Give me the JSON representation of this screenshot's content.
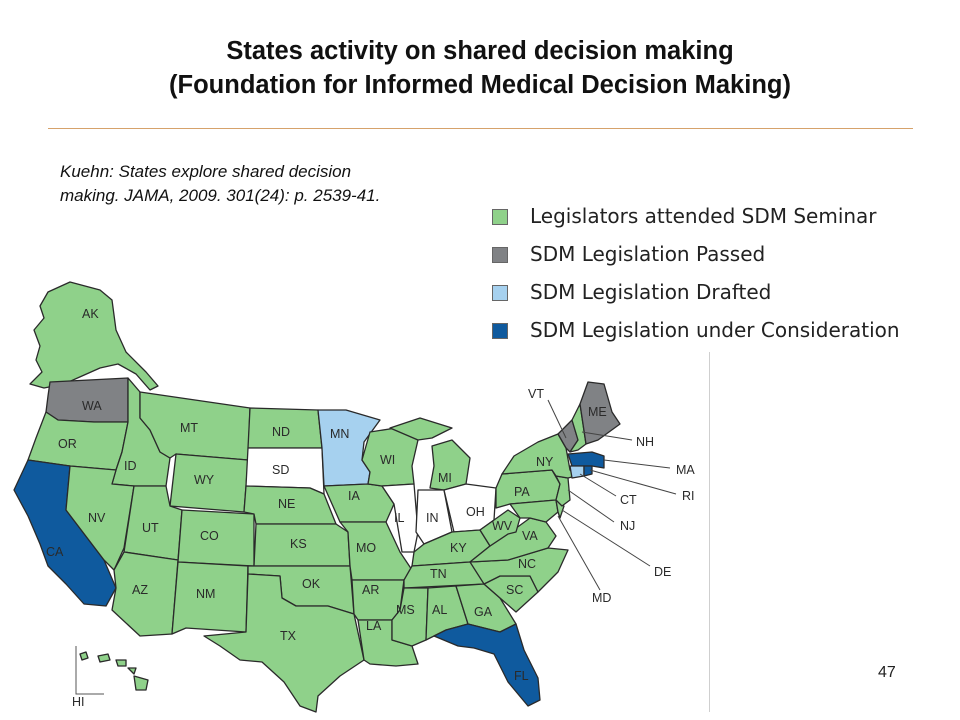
{
  "title_line1": "States activity on shared decision making",
  "title_line2": "(Foundation for Informed Medical Decision Making)",
  "citation": "Kuehn: States explore shared decision making. JAMA, 2009. 301(24): p. 2539-41.",
  "legend": [
    {
      "label": "Legislators attended SDM Seminar",
      "color": "#8fd18a"
    },
    {
      "label": "SDM Legislation Passed",
      "color": "#808285"
    },
    {
      "label": "SDM Legislation Drafted",
      "color": "#a6d1ef"
    },
    {
      "label": "SDM Legislation under Consideration",
      "color": "#0f5a9e"
    }
  ],
  "colors": {
    "seminar": "#8fd18a",
    "passed": "#808285",
    "drafted": "#a6d1ef",
    "consideration": "#0f5a9e",
    "none": "#ffffff",
    "border": "#2a2a2a"
  },
  "states": {
    "AK": "AK",
    "HI": "HI",
    "WA": "WA",
    "OR": "OR",
    "CA": "CA",
    "ID": "ID",
    "NV": "NV",
    "MT": "MT",
    "WY": "WY",
    "UT": "UT",
    "AZ": "AZ",
    "CO": "CO",
    "NM": "NM",
    "ND": "ND",
    "SD": "SD",
    "NE": "NE",
    "KS": "KS",
    "OK": "OK",
    "TX": "TX",
    "MN": "MN",
    "IA": "IA",
    "MO": "MO",
    "AR": "AR",
    "LA": "LA",
    "WI": "WI",
    "IL": "IL",
    "MS": "MS",
    "MI": "MI",
    "IN": "IN",
    "KY": "KY",
    "TN": "TN",
    "AL": "AL",
    "OH": "OH",
    "WV": "WV",
    "VA": "VA",
    "NC": "NC",
    "SC": "SC",
    "GA": "GA",
    "FL": "FL",
    "PA": "PA",
    "NY": "NY",
    "VT": "VT",
    "ME": "ME",
    "NH": "NH",
    "MA": "MA",
    "RI": "RI",
    "CT": "CT",
    "NJ": "NJ",
    "DE": "DE",
    "MD": "MD"
  },
  "page_number": "47"
}
